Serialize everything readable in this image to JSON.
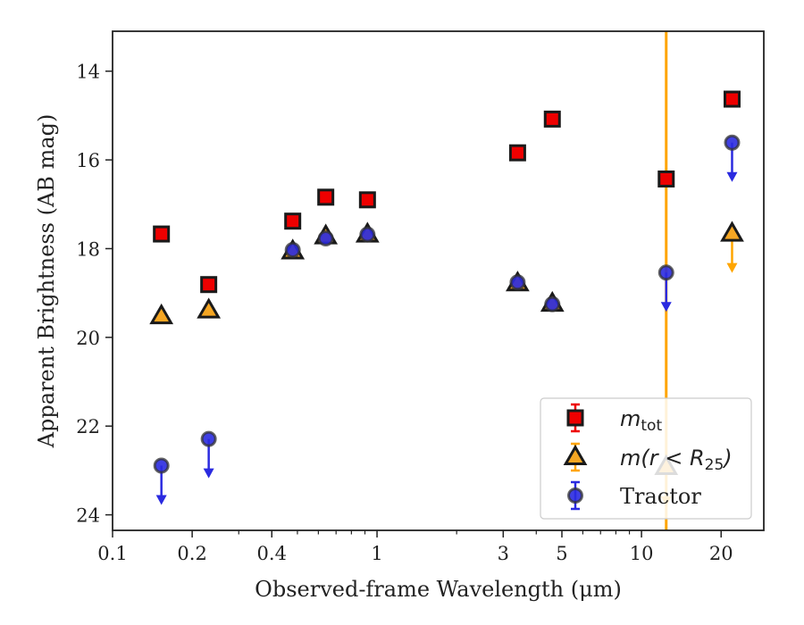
{
  "chart_data": {
    "type": "scatter",
    "title": "",
    "xlabel": "Observed-frame Wavelength (μm)",
    "ylabel": "Apparent Brightness (AB mag)",
    "xscale": "log",
    "xlim": [
      0.1,
      29
    ],
    "ylim": [
      24.35,
      13.1
    ],
    "y_inverted": true,
    "grid": false,
    "legend_position": "lower-right",
    "x_ticks": [
      {
        "value": 0.1,
        "label": "0.1"
      },
      {
        "value": 0.2,
        "label": "0.2"
      },
      {
        "value": 0.4,
        "label": "0.4"
      },
      {
        "value": 1,
        "label": "1"
      },
      {
        "value": 3,
        "label": "3"
      },
      {
        "value": 5,
        "label": "5"
      },
      {
        "value": 10,
        "label": "10"
      },
      {
        "value": 20,
        "label": "20"
      }
    ],
    "y_ticks": [
      {
        "value": 14,
        "label": "14"
      },
      {
        "value": 16,
        "label": "16"
      },
      {
        "value": 18,
        "label": "18"
      },
      {
        "value": 20,
        "label": "20"
      },
      {
        "value": 22,
        "label": "22"
      },
      {
        "value": 24,
        "label": "24"
      }
    ],
    "vertical_line": {
      "x": 12.4,
      "color": "#ffa500"
    },
    "series": [
      {
        "name": "m_tot",
        "legend_base": "m",
        "legend_sub": "tot",
        "marker": "square",
        "fill": "#ee0000",
        "edge": "#1a1a1a",
        "x": [
          0.153,
          0.231,
          0.48,
          0.64,
          0.92,
          3.4,
          4.6,
          12.4,
          22
        ],
        "y": [
          17.67,
          18.81,
          17.38,
          16.84,
          16.9,
          15.84,
          15.08,
          16.43,
          14.63
        ],
        "upper_limit": [
          false,
          false,
          false,
          false,
          false,
          false,
          false,
          false,
          false
        ]
      },
      {
        "name": "m(r < R25)",
        "legend_base": "m(r < R",
        "legend_sub": "25",
        "legend_tail": ")",
        "marker": "triangle",
        "fill": "#f5a623",
        "edge": "#1a1a1a",
        "limit_color": "#ffa500",
        "x": [
          0.153,
          0.231,
          0.48,
          0.64,
          0.92,
          3.4,
          4.6,
          12.4,
          22
        ],
        "y": [
          19.52,
          19.39,
          18.06,
          17.72,
          17.68,
          18.78,
          19.24,
          22.92,
          17.66
        ],
        "upper_limit": [
          false,
          false,
          false,
          false,
          false,
          false,
          false,
          true,
          true
        ]
      },
      {
        "name": "Tractor",
        "marker": "circle",
        "fill": "#2a2ae0",
        "edge": "#333333",
        "limit_color": "#2a2ae0",
        "x": [
          0.153,
          0.231,
          0.48,
          0.64,
          0.92,
          3.4,
          4.6,
          12.4,
          22
        ],
        "y": [
          22.89,
          22.29,
          18.03,
          17.77,
          17.68,
          18.76,
          19.25,
          18.54,
          15.61
        ],
        "upper_limit": [
          true,
          true,
          false,
          false,
          false,
          false,
          false,
          true,
          true
        ]
      }
    ]
  }
}
